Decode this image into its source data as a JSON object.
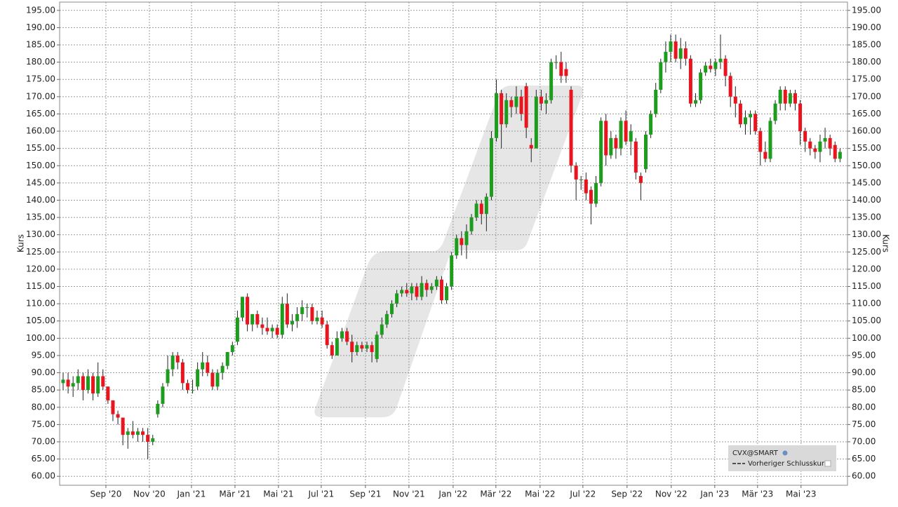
{
  "chart_data": {
    "type": "candlestick",
    "y_label": "Kurs",
    "y2_label": "Kurs",
    "grid": true,
    "up_color": "#1e9c1e",
    "down_color": "#e8141e",
    "xlim": [
      -0.7,
      157.5
    ],
    "ylim": [
      57.4,
      197.4
    ],
    "xticks": [
      {
        "value": 8.59,
        "label": "Sep '20"
      },
      {
        "value": 17.32,
        "label": "Nov '20"
      },
      {
        "value": 25.77,
        "label": "Jan '21"
      },
      {
        "value": 34.51,
        "label": "Mär '21"
      },
      {
        "value": 43.24,
        "label": "Mai '21"
      },
      {
        "value": 51.83,
        "label": "Jul '21"
      },
      {
        "value": 60.7,
        "label": "Sep '21"
      },
      {
        "value": 69.44,
        "label": "Nov '21"
      },
      {
        "value": 78.31,
        "label": "Jan '22"
      },
      {
        "value": 86.9,
        "label": "Mär '22"
      },
      {
        "value": 95.77,
        "label": "Mai '22"
      },
      {
        "value": 104.37,
        "label": "Jul '22"
      },
      {
        "value": 113.24,
        "label": "Sep '22"
      },
      {
        "value": 122.11,
        "label": "Nov '22"
      },
      {
        "value": 130.85,
        "label": "Jan '23"
      },
      {
        "value": 139.44,
        "label": "Mär '23"
      },
      {
        "value": 148.17,
        "label": "Mai '23"
      }
    ],
    "yticks": [
      {
        "value": 60,
        "label": "60.00"
      },
      {
        "value": 65,
        "label": "65.00"
      },
      {
        "value": 70,
        "label": "70.00"
      },
      {
        "value": 75,
        "label": "75.00"
      },
      {
        "value": 80,
        "label": "80.00"
      },
      {
        "value": 85,
        "label": "85.00"
      },
      {
        "value": 90,
        "label": "90.00"
      },
      {
        "value": 95,
        "label": "95.00"
      },
      {
        "value": 100,
        "label": "100.00"
      },
      {
        "value": 105,
        "label": "105.00"
      },
      {
        "value": 110,
        "label": "110.00"
      },
      {
        "value": 115,
        "label": "115.00"
      },
      {
        "value": 120,
        "label": "120.00"
      },
      {
        "value": 125,
        "label": "125.00"
      },
      {
        "value": 130,
        "label": "130.00"
      },
      {
        "value": 135,
        "label": "135.00"
      },
      {
        "value": 140,
        "label": "140.00"
      },
      {
        "value": 145,
        "label": "145.00"
      },
      {
        "value": 150,
        "label": "150.00"
      },
      {
        "value": 155,
        "label": "155.00"
      },
      {
        "value": 160,
        "label": "160.00"
      },
      {
        "value": 165,
        "label": "165.00"
      },
      {
        "value": 170,
        "label": "170.00"
      },
      {
        "value": 175,
        "label": "175.00"
      },
      {
        "value": 180,
        "label": "180.00"
      },
      {
        "value": 185,
        "label": "185.00"
      },
      {
        "value": 190,
        "label": "190.00"
      },
      {
        "value": 195,
        "label": "195.00"
      }
    ],
    "legend": [
      "CVX@SMART",
      "Vorheriger Schlusskurs"
    ],
    "ohlc": [
      [
        87,
        90,
        85,
        88
      ],
      [
        88,
        90,
        84,
        86
      ],
      [
        86,
        89,
        83,
        87
      ],
      [
        87,
        91,
        85,
        89
      ],
      [
        89,
        90,
        82,
        85
      ],
      [
        85,
        91,
        84,
        89
      ],
      [
        89,
        90,
        82,
        84
      ],
      [
        84,
        93,
        83,
        89
      ],
      [
        89,
        91,
        85,
        86
      ],
      [
        86,
        86,
        81,
        82
      ],
      [
        82,
        82,
        76,
        78
      ],
      [
        78,
        79,
        75,
        77
      ],
      [
        77,
        77,
        69,
        72
      ],
      [
        72,
        74,
        68,
        73
      ],
      [
        73,
        76,
        71,
        72
      ],
      [
        72,
        74,
        70,
        73
      ],
      [
        73,
        74,
        70,
        72
      ],
      [
        72,
        74,
        65,
        70
      ],
      [
        70,
        72,
        69,
        71
      ],
      [
        78,
        82,
        77,
        81
      ],
      [
        81,
        87,
        80,
        86
      ],
      [
        87,
        95,
        86,
        91
      ],
      [
        91,
        96,
        89,
        95
      ],
      [
        95,
        96,
        91,
        93
      ],
      [
        93,
        94,
        85,
        87
      ],
      [
        87,
        88,
        84,
        85
      ],
      [
        85,
        88,
        84,
        85
      ],
      [
        86,
        93,
        85,
        91
      ],
      [
        91,
        96,
        89,
        93
      ],
      [
        93,
        95,
        89,
        90
      ],
      [
        90,
        91,
        85,
        86
      ],
      [
        86,
        91,
        85,
        90
      ],
      [
        90,
        93,
        88,
        92
      ],
      [
        92,
        96,
        91,
        96
      ],
      [
        96,
        99,
        95,
        98
      ],
      [
        99,
        108,
        98,
        106
      ],
      [
        106,
        112,
        105,
        112
      ],
      [
        112,
        113,
        102,
        104
      ],
      [
        104,
        107,
        102,
        107
      ],
      [
        107,
        108,
        103,
        104
      ],
      [
        104,
        106,
        101,
        103
      ],
      [
        103,
        106,
        101,
        102
      ],
      [
        102,
        104,
        100,
        103
      ],
      [
        103,
        104,
        100,
        101
      ],
      [
        101,
        112,
        100,
        110
      ],
      [
        110,
        113,
        103,
        104
      ],
      [
        104,
        107,
        102,
        105
      ],
      [
        105,
        109,
        103,
        107
      ],
      [
        107,
        111,
        105,
        109
      ],
      [
        109,
        110,
        106,
        109
      ],
      [
        109,
        110,
        104,
        105
      ],
      [
        105,
        108,
        104,
        106
      ],
      [
        106,
        108,
        103,
        104
      ],
      [
        104,
        105,
        97,
        98
      ],
      [
        98,
        99,
        94,
        95
      ],
      [
        95,
        102,
        95,
        100
      ],
      [
        100,
        103,
        99,
        102
      ],
      [
        102,
        103,
        98,
        99
      ],
      [
        99,
        101,
        93,
        96
      ],
      [
        96,
        99,
        95,
        98
      ],
      [
        98,
        99,
        96,
        97
      ],
      [
        97,
        99,
        96,
        98
      ],
      [
        98,
        99,
        93,
        96
      ],
      [
        94,
        102,
        93,
        101
      ],
      [
        101,
        106,
        100,
        104
      ],
      [
        104,
        108,
        103,
        107
      ],
      [
        107,
        111,
        106,
        110
      ],
      [
        110,
        114,
        109,
        113
      ],
      [
        113,
        115,
        112,
        114
      ],
      [
        114,
        116,
        112,
        113
      ],
      [
        113,
        116,
        111,
        115
      ],
      [
        115,
        116,
        111,
        112
      ],
      [
        112,
        118,
        111,
        116
      ],
      [
        116,
        117,
        112,
        114
      ],
      [
        114,
        116,
        113,
        115
      ],
      [
        115,
        118,
        114,
        117
      ],
      [
        117,
        118,
        110,
        111
      ],
      [
        111,
        116,
        110,
        115
      ],
      [
        115,
        125,
        114,
        124
      ],
      [
        124,
        130,
        123,
        129
      ],
      [
        129,
        131,
        124,
        127
      ],
      [
        127,
        133,
        123,
        131
      ],
      [
        131,
        136,
        130,
        135
      ],
      [
        135,
        140,
        134,
        139
      ],
      [
        139,
        140,
        133,
        136
      ],
      [
        136,
        142,
        131,
        141
      ],
      [
        141,
        160,
        140,
        158
      ],
      [
        158,
        175,
        157,
        171
      ],
      [
        171,
        172,
        155,
        162
      ],
      [
        162,
        171,
        161,
        169
      ],
      [
        169,
        170,
        164,
        167
      ],
      [
        167,
        173,
        165,
        170
      ],
      [
        170,
        172,
        163,
        165
      ],
      [
        173,
        174,
        158,
        161
      ],
      [
        156,
        158,
        151,
        155
      ],
      [
        155,
        172,
        155,
        170
      ],
      [
        170,
        172,
        166,
        168
      ],
      [
        168,
        171,
        165,
        169
      ],
      [
        169,
        181,
        168,
        180
      ],
      [
        180,
        182,
        178,
        180
      ],
      [
        180,
        183,
        174,
        176
      ],
      [
        178,
        180,
        174,
        176
      ],
      [
        172,
        173,
        148,
        150
      ],
      [
        150,
        151,
        140,
        146
      ],
      [
        146,
        147,
        143,
        146
      ],
      [
        146,
        148,
        140,
        142
      ],
      [
        143,
        144,
        133,
        139
      ],
      [
        139,
        147,
        138,
        145
      ],
      [
        145,
        164,
        144,
        163
      ],
      [
        163,
        165,
        150,
        153
      ],
      [
        153,
        160,
        152,
        158
      ],
      [
        158,
        159,
        152,
        155
      ],
      [
        155,
        164,
        153,
        163
      ],
      [
        163,
        166,
        156,
        157
      ],
      [
        157,
        162,
        153,
        160
      ],
      [
        157,
        158,
        146,
        148
      ],
      [
        147,
        148,
        140,
        145
      ],
      [
        149,
        160,
        148,
        159
      ],
      [
        159,
        166,
        158,
        165
      ],
      [
        165,
        174,
        164,
        172
      ],
      [
        172,
        181,
        171,
        180
      ],
      [
        180,
        186,
        177,
        183
      ],
      [
        183,
        188,
        180,
        186
      ],
      [
        186,
        188,
        180,
        181
      ],
      [
        181,
        187,
        178,
        184
      ],
      [
        184,
        186,
        179,
        181
      ],
      [
        181,
        182,
        167,
        168
      ],
      [
        168,
        171,
        167,
        169
      ],
      [
        169,
        178,
        168,
        177
      ],
      [
        177,
        180,
        176,
        179
      ],
      [
        179,
        181,
        177,
        178
      ],
      [
        178,
        181,
        176,
        180
      ],
      [
        180,
        188,
        178,
        181
      ],
      [
        181,
        182,
        173,
        176
      ],
      [
        176,
        177,
        167,
        170
      ],
      [
        170,
        173,
        164,
        168
      ],
      [
        168,
        169,
        161,
        162
      ],
      [
        162,
        166,
        159,
        164
      ],
      [
        164,
        166,
        159,
        165
      ],
      [
        165,
        166,
        159,
        160
      ],
      [
        160,
        161,
        150,
        154
      ],
      [
        154,
        157,
        151,
        152
      ],
      [
        152,
        164,
        151,
        163
      ],
      [
        163,
        169,
        162,
        168
      ],
      [
        168,
        173,
        166,
        172
      ],
      [
        172,
        173,
        166,
        168
      ],
      [
        168,
        172,
        167,
        171
      ],
      [
        171,
        172,
        166,
        168
      ],
      [
        168,
        169,
        156,
        160
      ],
      [
        160,
        161,
        154,
        157
      ],
      [
        157,
        158,
        153,
        155
      ],
      [
        155,
        156,
        152,
        154
      ],
      [
        154,
        159,
        151,
        157
      ],
      [
        157,
        161,
        155,
        158
      ],
      [
        158,
        159,
        153,
        155
      ],
      [
        156,
        157,
        151,
        152
      ],
      [
        152,
        155,
        151,
        154
      ]
    ]
  }
}
